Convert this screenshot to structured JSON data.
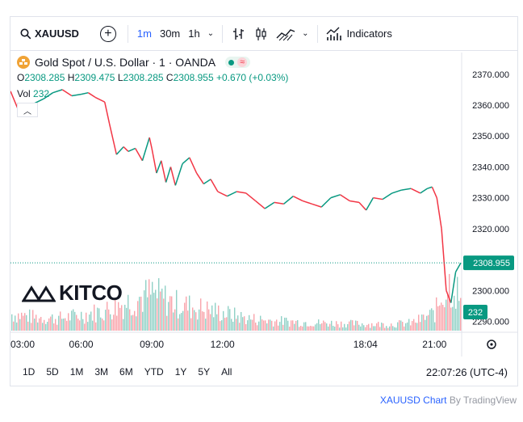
{
  "toolbar": {
    "symbol": "XAUUSD",
    "intervals": [
      "1m",
      "30m",
      "1h"
    ],
    "active_interval": "1m",
    "indicators_label": "Indicators"
  },
  "legend": {
    "title": "Gold Spot / U.S. Dollar · 1 · OANDA",
    "open_key": "O",
    "open": "2308.285",
    "high_key": "H",
    "high": "2309.475",
    "low_key": "L",
    "low": "2308.285",
    "close_key": "C",
    "close": "2308.955",
    "change": "+0.670 (+0.03%)",
    "vol_label": "Vol",
    "vol_value": "232"
  },
  "watermark": "KITCO",
  "price_tag": "2308.955",
  "volume_tag": "232",
  "range_buttons": [
    "1D",
    "5D",
    "1M",
    "3M",
    "6M",
    "YTD",
    "1Y",
    "5Y",
    "All"
  ],
  "clock": "22:07:26 (UTC-4)",
  "footer": {
    "symbol_link": "XAUUSD Chart",
    "by_text": "By TradingView"
  },
  "colors": {
    "up": "#089981",
    "down": "#f23645",
    "accent": "#2962ff"
  },
  "chart_data": {
    "type": "line",
    "title": "Gold Spot / U.S. Dollar · 1 · OANDA",
    "y_ticks": [
      2370,
      2360,
      2350,
      2340,
      2330,
      2320,
      2310,
      2300,
      2290
    ],
    "y_tick_labels": [
      "2370.000",
      "2360.000",
      "2350.000",
      "2340.000",
      "2330.000",
      "2320.000",
      "2310.000",
      "2300.000",
      "2290.000"
    ],
    "ylim": [
      2287,
      2377
    ],
    "x_tick_labels": [
      "03:00",
      "06:00",
      "09:00",
      "12:00",
      "18:04",
      "21:00"
    ],
    "x_tick_hours": [
      3,
      6,
      9,
      12,
      18.07,
      21
    ],
    "xlim": [
      3,
      22.12
    ],
    "price_series": {
      "name": "XAUUSD",
      "x": [
        3.0,
        3.3,
        3.6,
        4.0,
        4.4,
        4.8,
        5.2,
        5.6,
        6.0,
        6.3,
        6.6,
        7.0,
        7.2,
        7.5,
        7.8,
        8.0,
        8.3,
        8.6,
        8.9,
        9.0,
        9.2,
        9.4,
        9.6,
        9.8,
        10.0,
        10.3,
        10.6,
        10.9,
        11.2,
        11.5,
        11.8,
        12.2,
        12.6,
        13.0,
        13.4,
        13.8,
        14.2,
        14.6,
        15.0,
        15.4,
        15.8,
        16.2,
        16.6,
        17.0,
        17.4,
        17.8,
        18.1,
        18.4,
        18.8,
        19.2,
        19.6,
        20.0,
        20.4,
        20.7,
        20.9,
        21.1,
        21.3,
        21.5,
        21.7,
        21.9,
        22.12
      ],
      "y": [
        2364.5,
        2359.0,
        2357.5,
        2360.5,
        2362.0,
        2364.0,
        2365.0,
        2363.0,
        2363.5,
        2364.0,
        2362.5,
        2361.0,
        2354.0,
        2344.0,
        2346.5,
        2345.0,
        2346.0,
        2342.0,
        2349.5,
        2346.0,
        2338.0,
        2342.0,
        2335.0,
        2340.0,
        2334.0,
        2341.0,
        2343.0,
        2338.0,
        2334.5,
        2336.0,
        2332.0,
        2330.5,
        2332.0,
        2331.5,
        2329.0,
        2326.5,
        2328.5,
        2328.0,
        2330.5,
        2329.0,
        2328.0,
        2327.0,
        2330.0,
        2331.0,
        2329.0,
        2328.5,
        2326.0,
        2330.0,
        2329.5,
        2331.5,
        2332.5,
        2333.0,
        2331.5,
        2333.0,
        2333.5,
        2330.0,
        2320.0,
        2300.0,
        2296.0,
        2306.0,
        2308.955
      ]
    },
    "volume_series": {
      "name": "Vol",
      "x": [
        3,
        4,
        5,
        6,
        7,
        8,
        9,
        10,
        11,
        12,
        13,
        14,
        15,
        16,
        17,
        18,
        19,
        20,
        20.5,
        21,
        21.3,
        21.6,
        21.9,
        22.12
      ],
      "values": [
        150,
        120,
        110,
        140,
        180,
        260,
        330,
        240,
        200,
        160,
        110,
        90,
        80,
        70,
        65,
        60,
        55,
        70,
        110,
        160,
        320,
        420,
        380,
        232
      ],
      "max_display": 480
    },
    "last_price": 2308.955,
    "grid": false,
    "legend": "top-left"
  }
}
